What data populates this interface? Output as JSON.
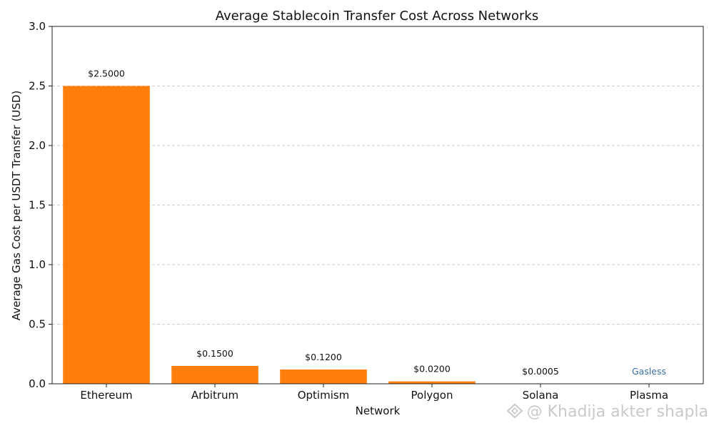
{
  "chart_data": {
    "type": "bar",
    "title": "Average Stablecoin Transfer Cost Across Networks",
    "xlabel": "Network",
    "ylabel": "Average Gas Cost per USDT Transfer (USD)",
    "categories": [
      "Ethereum",
      "Arbitrum",
      "Optimism",
      "Polygon",
      "Solana",
      "Plasma"
    ],
    "values": [
      2.5,
      0.15,
      0.12,
      0.02,
      0.0005,
      0
    ],
    "value_labels": [
      "$2.5000",
      "$0.1500",
      "$0.1200",
      "$0.0200",
      "$0.0005",
      "Gasless"
    ],
    "ylim": [
      0,
      3.0
    ],
    "yticks": [
      "0.0",
      "0.5",
      "1.0",
      "1.5",
      "2.0",
      "2.5",
      "3.0"
    ],
    "ytick_values": [
      0,
      0.5,
      1.0,
      1.5,
      2.0,
      2.5,
      3.0
    ],
    "grid": true,
    "colors": {
      "bar": "#ff7f0e",
      "special_label": "#3a6ea5"
    }
  },
  "watermark": {
    "text": "@ Khadija akter shapla",
    "icon": "logo-icon"
  }
}
